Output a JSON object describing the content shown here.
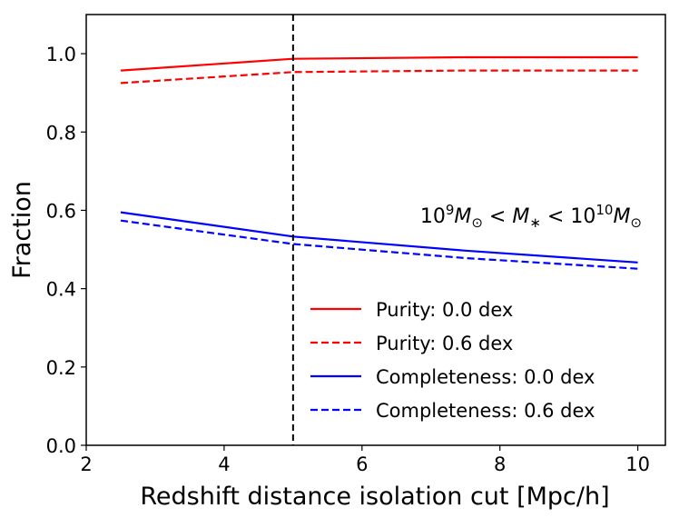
{
  "chart_data": {
    "type": "line",
    "title": "",
    "xlabel": "Redshift distance isolation cut [Mpc/h]",
    "ylabel": "Fraction",
    "xlim": [
      2,
      10.4
    ],
    "ylim": [
      0.0,
      1.1
    ],
    "xticks": [
      2,
      4,
      6,
      8,
      10
    ],
    "xtick_labels": [
      "2",
      "4",
      "6",
      "8",
      "10"
    ],
    "yticks": [
      0.0,
      0.2,
      0.4,
      0.6,
      0.8,
      1.0
    ],
    "ytick_labels": [
      "0.0",
      "0.2",
      "0.4",
      "0.6",
      "0.8",
      "1.0"
    ],
    "grid": false,
    "legend_position": "lower-right",
    "x": [
      2.5,
      5,
      7.5,
      10
    ],
    "series": [
      {
        "name": "Purity: 0.0 dex",
        "color": "#ff0000",
        "style": "solid",
        "values": [
          0.957,
          0.987,
          0.991,
          0.991
        ]
      },
      {
        "name": "Purity: 0.6 dex",
        "color": "#ff0000",
        "style": "dashed",
        "values": [
          0.925,
          0.953,
          0.957,
          0.957
        ]
      },
      {
        "name": "Completeness: 0.0 dex",
        "color": "#0000ff",
        "style": "solid",
        "values": [
          0.595,
          0.533,
          0.497,
          0.467
        ]
      },
      {
        "name": "Completeness: 0.6 dex",
        "color": "#0000ff",
        "style": "dashed",
        "values": [
          0.574,
          0.514,
          0.478,
          0.451
        ]
      }
    ],
    "vline": {
      "x": 5,
      "color": "#000000",
      "style": "dashed"
    },
    "annotation": {
      "base1": "10",
      "exp1": "9",
      "m1": "M",
      "sun1": "⊙",
      "lt1": " < ",
      "m2": "M",
      "star": "∗",
      "lt2": " < ",
      "base2": "10",
      "exp2": "10",
      "m3": "M",
      "sun2": "⊙"
    }
  }
}
